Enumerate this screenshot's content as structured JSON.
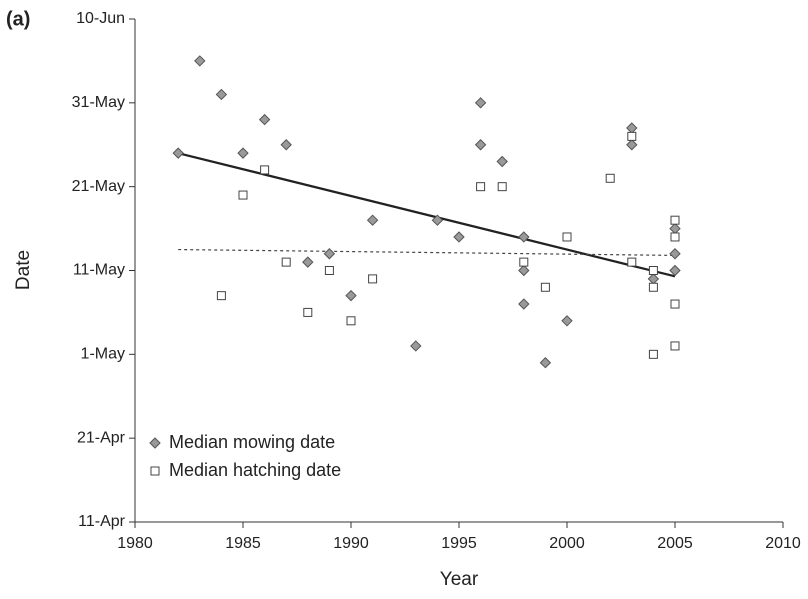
{
  "chart_data": {
    "type": "scatter",
    "panel_label": "(a)",
    "xlabel": "Year",
    "ylabel": "Date",
    "xlim": [
      1980,
      2010
    ],
    "xticks": [
      1980,
      1985,
      1990,
      1995,
      2000,
      2005,
      2010
    ],
    "ylim": [
      101,
      161
    ],
    "yticks": [
      {
        "value": 101,
        "label": "11-Apr"
      },
      {
        "value": 111,
        "label": "21-Apr"
      },
      {
        "value": 121,
        "label": "1-May"
      },
      {
        "value": 131,
        "label": "11-May"
      },
      {
        "value": 141,
        "label": "21-May"
      },
      {
        "value": 151,
        "label": "31-May"
      },
      {
        "value": 161,
        "label": "10-Jun"
      }
    ],
    "legend": "bottom-left",
    "series": [
      {
        "name": "Median mowing date",
        "marker": "diamond",
        "color": "#999999",
        "x": [
          1982,
          1983,
          1984,
          1985,
          1986,
          1987,
          1988,
          1989,
          1990,
          1991,
          1993,
          1994,
          1995,
          1996,
          1996,
          1997,
          1998,
          1998,
          1998,
          1999,
          2000,
          2003,
          2003,
          2004,
          2005,
          2005,
          2005
        ],
        "values": [
          145,
          156,
          152,
          145,
          149,
          146,
          132,
          133,
          128,
          137,
          122,
          137,
          135,
          151,
          146,
          144,
          135,
          131,
          127,
          120,
          125,
          148,
          146,
          130,
          136,
          133,
          131
        ]
      },
      {
        "name": "Median hatching date",
        "marker": "square",
        "color": "#ffffff",
        "x": [
          1984,
          1985,
          1986,
          1987,
          1988,
          1989,
          1990,
          1991,
          1996,
          1997,
          1998,
          1999,
          2000,
          2002,
          2003,
          2003,
          2004,
          2004,
          2004,
          2005,
          2005,
          2005,
          2005
        ],
        "values": [
          128,
          140,
          143,
          132,
          126,
          131,
          125,
          130,
          141,
          141,
          132,
          129,
          135,
          142,
          147,
          132,
          131,
          129,
          121,
          137,
          135,
          127,
          122
        ]
      }
    ],
    "trend_lines": [
      {
        "x": [
          1982,
          2005
        ],
        "values": [
          145,
          130.3
        ],
        "style": "solid",
        "color": "#222222"
      },
      {
        "x": [
          1982,
          2005
        ],
        "values": [
          133.5,
          132.8
        ],
        "style": "dashed",
        "color": "#444444"
      }
    ]
  }
}
